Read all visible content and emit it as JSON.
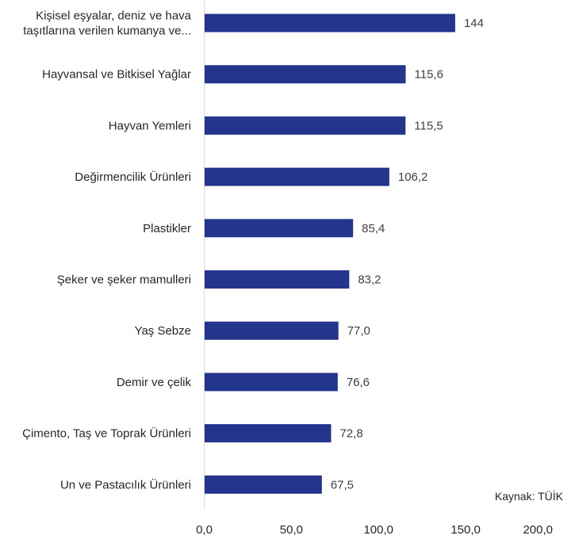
{
  "chart_data": {
    "type": "bar",
    "orientation": "horizontal",
    "categories": [
      [
        "Kişisel eşyalar, deniz ve hava",
        "taşıtlarına verilen kumanya ve..."
      ],
      [
        "Hayvansal ve Bitkisel Yağlar"
      ],
      [
        "Hayvan Yemleri"
      ],
      [
        "Değirmencilik Ürünleri"
      ],
      [
        "Plastikler"
      ],
      [
        "Şeker ve şeker mamulleri"
      ],
      [
        "Yaş Sebze"
      ],
      [
        "Demir ve çelik"
      ],
      [
        "Çimento, Taş ve Toprak Ürünleri"
      ],
      [
        "Un ve Pastacılık Ürünleri"
      ]
    ],
    "values": [
      144,
      115.6,
      115.5,
      106.2,
      85.4,
      83.2,
      77.0,
      76.6,
      72.8,
      67.5
    ],
    "value_labels": [
      "144",
      "115,6",
      "115,5",
      "106,2",
      "85,4",
      "83,2",
      "77,0",
      "76,6",
      "72,8",
      "67,5"
    ],
    "xlim": [
      0,
      200
    ],
    "x_ticks": [
      "0,0",
      "50,0",
      "100,0",
      "150,0",
      "200,0"
    ],
    "x_tick_values": [
      0,
      50,
      100,
      150,
      200
    ],
    "bar_color": "#24358D",
    "grid": false,
    "title": "",
    "xlabel": "",
    "ylabel": "",
    "source_note": "Kaynak: TÜİK"
  }
}
